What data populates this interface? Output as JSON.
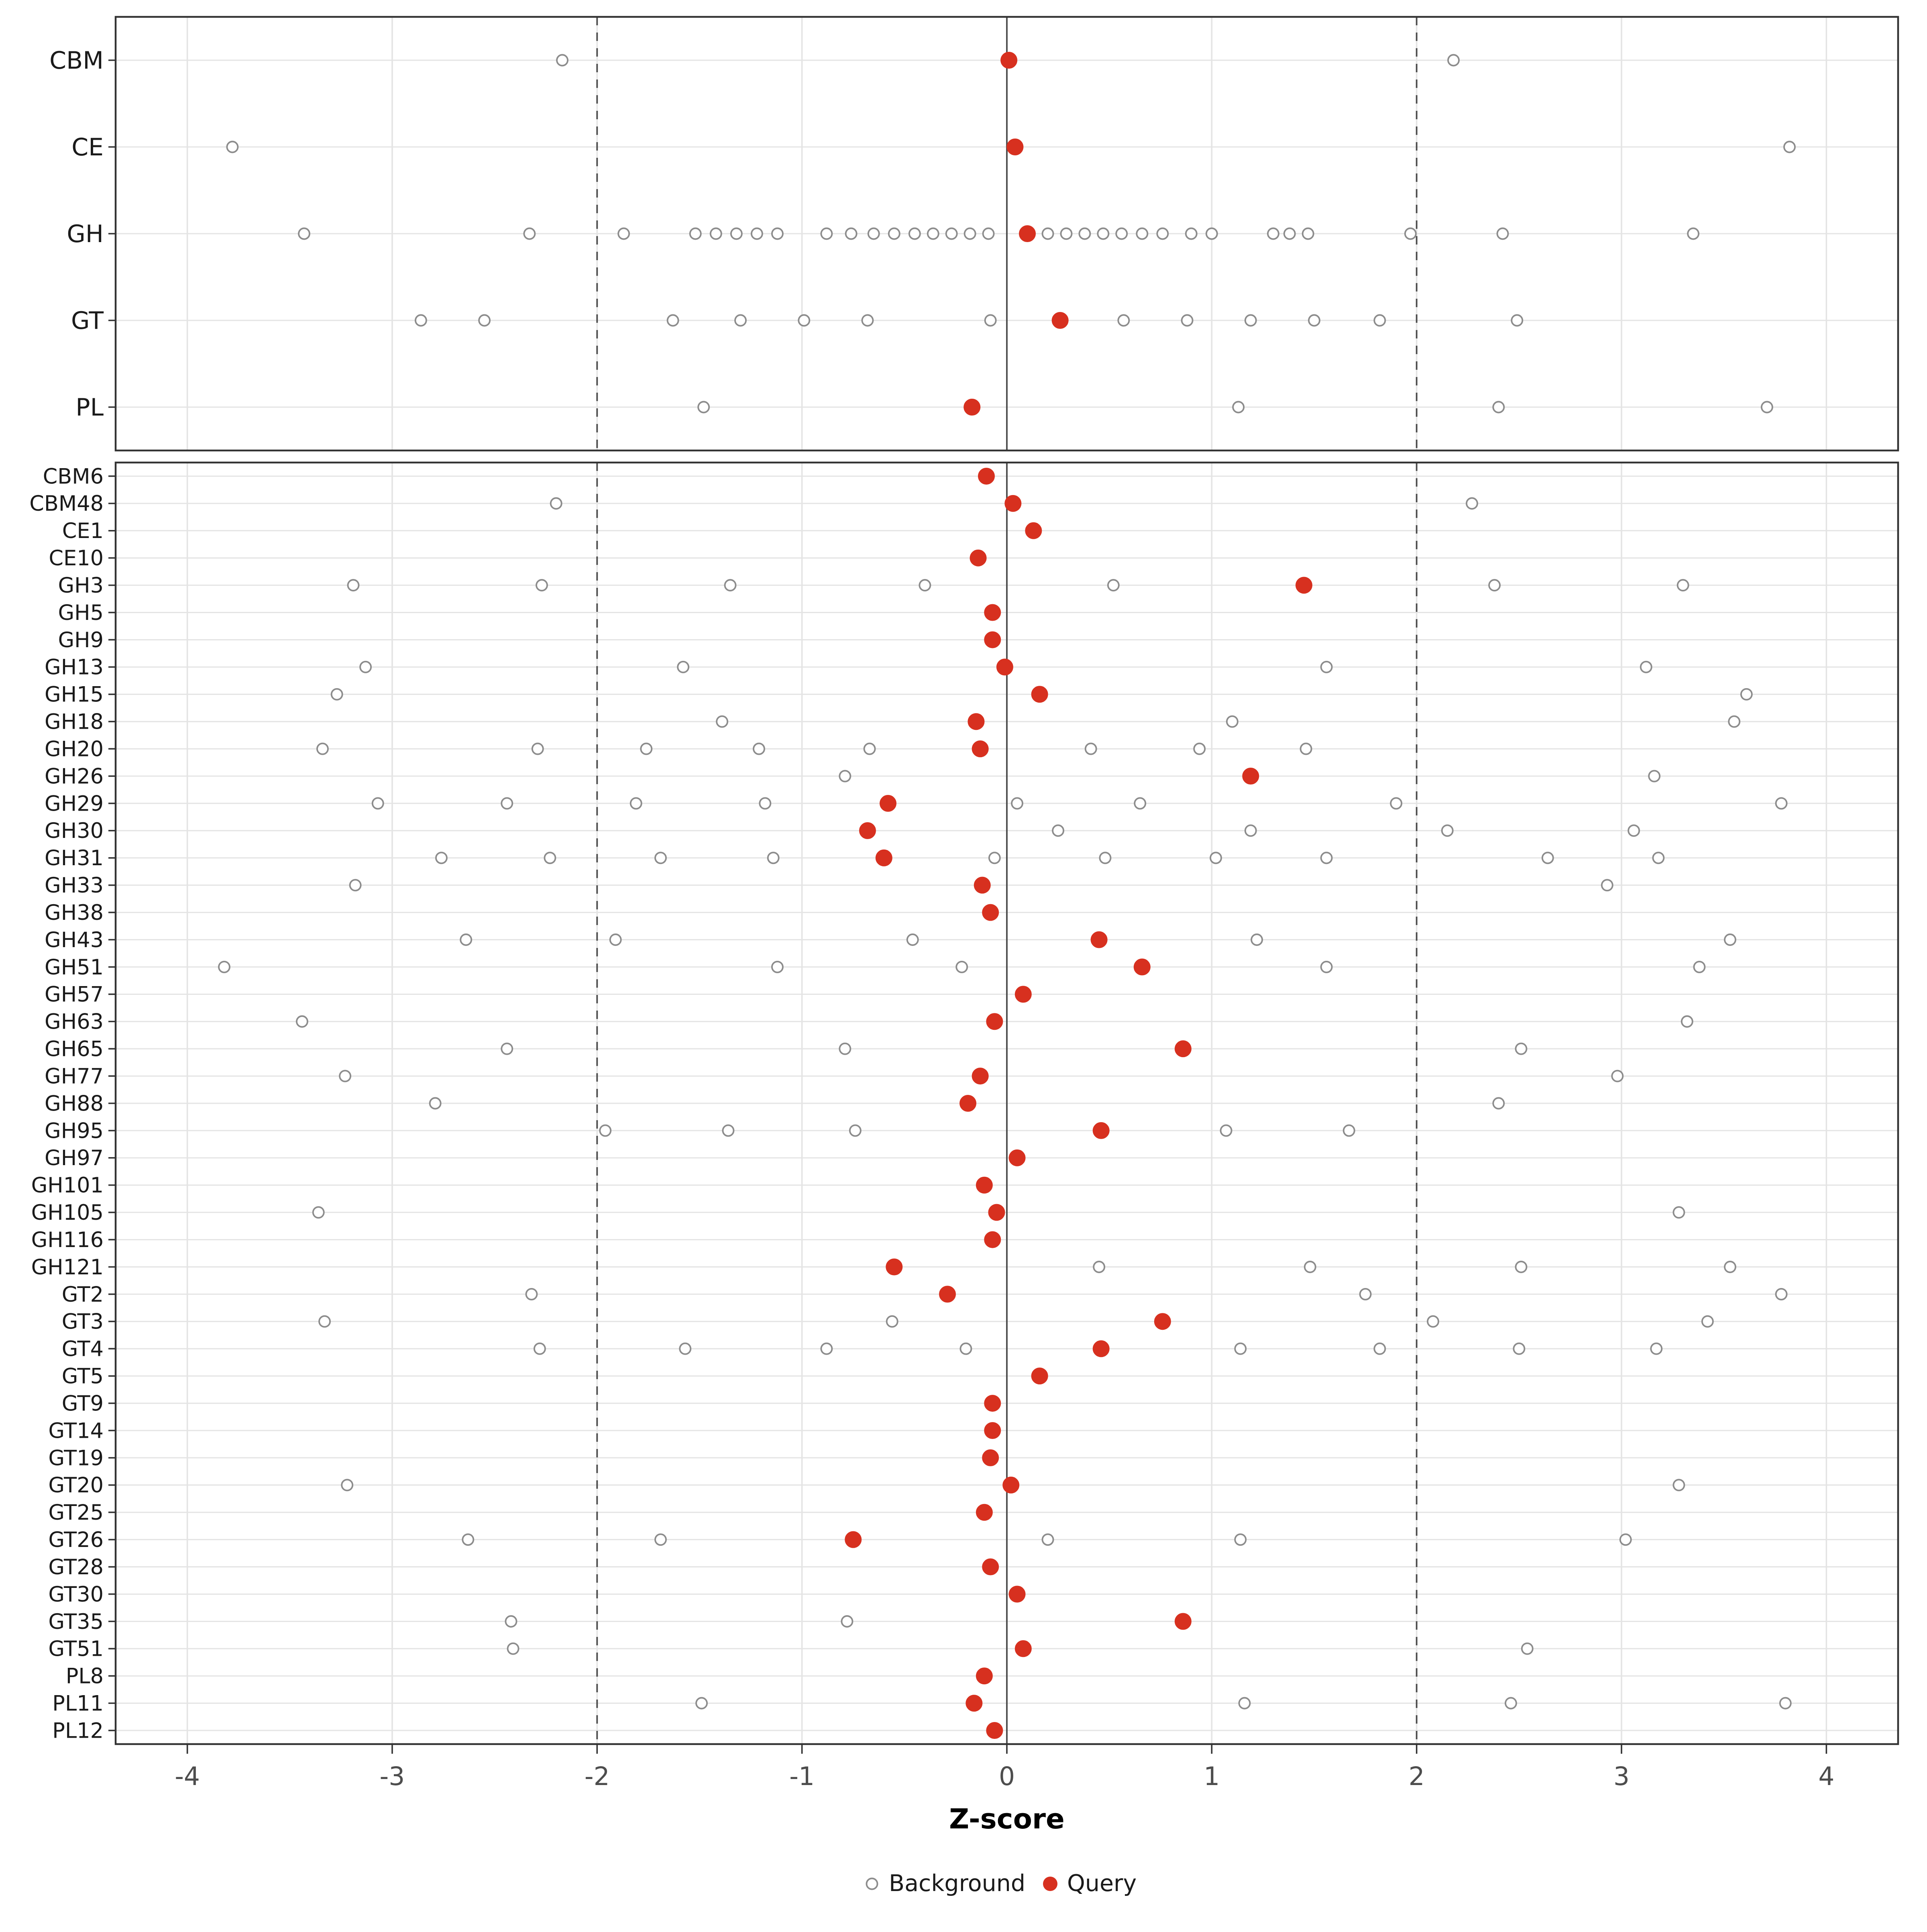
{
  "chart_data": {
    "type": "scatter",
    "title": "",
    "xlabel": "Z-score",
    "xlim": [
      -4.35,
      4.35
    ],
    "xticks": [
      -4,
      -3,
      -2,
      -1,
      0,
      1,
      2,
      3,
      4
    ],
    "xtick_labels": [
      "-4",
      "-3",
      "-2",
      "-1",
      "0",
      "1",
      "2",
      "3",
      "4"
    ],
    "reference_lines": {
      "solid": [
        0
      ],
      "dashed": [
        -2,
        2
      ]
    },
    "grid": true,
    "legend_position": "bottom",
    "legend": [
      {
        "label": "Background",
        "marker": "open-circle",
        "color": "#8c8c8c"
      },
      {
        "label": "Query",
        "marker": "filled-circle",
        "color": "#d7301f"
      }
    ],
    "colors": {
      "query": "#d7301f",
      "background_stroke": "#8c8c8c",
      "gridline": "#e4e4e4",
      "reference_line": "#4d4d4d",
      "panel_border": "#333333",
      "text": "#1a1a1a",
      "axis_text": "#4d4d4d"
    },
    "panels": [
      {
        "name": "family-class-summary",
        "rows": [
          {
            "label": "CBM",
            "query": 0.01,
            "background": [
              -2.17,
              2.18
            ]
          },
          {
            "label": "CE",
            "query": 0.04,
            "background": [
              -3.78,
              3.82
            ]
          },
          {
            "label": "GH",
            "query": 0.1,
            "background": [
              -3.43,
              -2.33,
              -1.87,
              -1.52,
              -1.42,
              -1.32,
              -1.22,
              -1.12,
              -0.88,
              -0.76,
              -0.65,
              -0.55,
              -0.45,
              -0.36,
              -0.27,
              -0.18,
              -0.09,
              0.2,
              0.29,
              0.38,
              0.47,
              0.56,
              0.66,
              0.76,
              0.9,
              1.0,
              1.3,
              1.38,
              1.47,
              1.97,
              2.42,
              3.35
            ]
          },
          {
            "label": "GT",
            "query": 0.26,
            "background": [
              -2.86,
              -2.55,
              -1.63,
              -1.3,
              -0.99,
              -0.68,
              -0.08,
              0.57,
              0.88,
              1.19,
              1.5,
              1.82,
              2.49
            ]
          },
          {
            "label": "PL",
            "query": -0.17,
            "background": [
              -1.48,
              1.13,
              2.4,
              3.71
            ]
          }
        ]
      },
      {
        "name": "family-detail",
        "rows": [
          {
            "label": "CBM6",
            "query": -0.1,
            "background": []
          },
          {
            "label": "CBM48",
            "query": 0.03,
            "background": [
              -2.2,
              2.27
            ]
          },
          {
            "label": "CE1",
            "query": 0.13,
            "background": []
          },
          {
            "label": "CE10",
            "query": -0.14,
            "background": []
          },
          {
            "label": "GH3",
            "query": 1.45,
            "background": [
              -3.19,
              -2.27,
              -1.35,
              -0.4,
              0.52,
              2.38,
              3.3
            ]
          },
          {
            "label": "GH5",
            "query": -0.07,
            "background": []
          },
          {
            "label": "GH9",
            "query": -0.07,
            "background": []
          },
          {
            "label": "GH13",
            "query": -0.01,
            "background": [
              -3.13,
              -1.58,
              1.56,
              3.12
            ]
          },
          {
            "label": "GH15",
            "query": 0.16,
            "background": [
              -3.27,
              3.61
            ]
          },
          {
            "label": "GH18",
            "query": -0.15,
            "background": [
              -1.39,
              1.1,
              3.55
            ]
          },
          {
            "label": "GH20",
            "query": -0.13,
            "background": [
              -3.34,
              -2.29,
              -1.76,
              -1.21,
              -0.67,
              0.41,
              0.94,
              1.46
            ]
          },
          {
            "label": "GH26",
            "query": 1.19,
            "background": [
              -0.79,
              3.16
            ]
          },
          {
            "label": "GH29",
            "query": -0.58,
            "background": [
              -3.07,
              -2.44,
              -1.81,
              -1.18,
              0.05,
              0.65,
              1.9,
              3.78
            ]
          },
          {
            "label": "GH30",
            "query": -0.68,
            "background": [
              0.25,
              1.19,
              2.15,
              3.06
            ]
          },
          {
            "label": "GH31",
            "query": -0.6,
            "background": [
              -2.76,
              -2.23,
              -1.69,
              -1.14,
              -0.06,
              0.48,
              1.02,
              1.56,
              2.64,
              3.18
            ]
          },
          {
            "label": "GH33",
            "query": -0.12,
            "background": [
              -3.18,
              2.93
            ]
          },
          {
            "label": "GH38",
            "query": -0.08,
            "background": []
          },
          {
            "label": "GH43",
            "query": 0.45,
            "background": [
              -2.64,
              -1.91,
              -0.46,
              1.22,
              3.53
            ]
          },
          {
            "label": "GH51",
            "query": 0.66,
            "background": [
              -3.82,
              -1.12,
              -0.22,
              1.56,
              3.38
            ]
          },
          {
            "label": "GH57",
            "query": 0.08,
            "background": []
          },
          {
            "label": "GH63",
            "query": -0.06,
            "background": [
              -3.44,
              3.32
            ]
          },
          {
            "label": "GH65",
            "query": 0.86,
            "background": [
              -2.44,
              -0.79,
              2.51
            ]
          },
          {
            "label": "GH77",
            "query": -0.13,
            "background": [
              -3.23,
              2.98
            ]
          },
          {
            "label": "GH88",
            "query": -0.19,
            "background": [
              -2.79,
              2.4
            ]
          },
          {
            "label": "GH95",
            "query": 0.46,
            "background": [
              -1.96,
              -1.36,
              -0.74,
              1.07,
              1.67
            ]
          },
          {
            "label": "GH97",
            "query": 0.05,
            "background": []
          },
          {
            "label": "GH101",
            "query": -0.11,
            "background": []
          },
          {
            "label": "GH105",
            "query": -0.05,
            "background": [
              -3.36,
              3.28
            ]
          },
          {
            "label": "GH116",
            "query": -0.07,
            "background": []
          },
          {
            "label": "GH121",
            "query": -0.55,
            "background": [
              0.45,
              1.48,
              2.51,
              3.53
            ]
          },
          {
            "label": "GT2",
            "query": -0.29,
            "background": [
              -2.32,
              1.75,
              3.78
            ]
          },
          {
            "label": "GT3",
            "query": 0.76,
            "background": [
              -3.33,
              -0.56,
              2.08,
              3.42
            ]
          },
          {
            "label": "GT4",
            "query": 0.46,
            "background": [
              -2.28,
              -1.57,
              -0.88,
              -0.2,
              1.14,
              1.82,
              2.5,
              3.17
            ]
          },
          {
            "label": "GT5",
            "query": 0.16,
            "background": []
          },
          {
            "label": "GT9",
            "query": -0.07,
            "background": []
          },
          {
            "label": "GT14",
            "query": -0.07,
            "background": []
          },
          {
            "label": "GT19",
            "query": -0.08,
            "background": []
          },
          {
            "label": "GT20",
            "query": 0.02,
            "background": [
              -3.22,
              3.28
            ]
          },
          {
            "label": "GT25",
            "query": -0.11,
            "background": []
          },
          {
            "label": "GT26",
            "query": -0.75,
            "background": [
              -2.63,
              -1.69,
              0.2,
              1.14,
              3.02
            ]
          },
          {
            "label": "GT28",
            "query": -0.08,
            "background": []
          },
          {
            "label": "GT30",
            "query": 0.05,
            "background": []
          },
          {
            "label": "GT35",
            "query": 0.86,
            "background": [
              -2.42,
              -0.78
            ]
          },
          {
            "label": "GT51",
            "query": 0.08,
            "background": [
              -2.41,
              2.54
            ]
          },
          {
            "label": "PL8",
            "query": -0.11,
            "background": []
          },
          {
            "label": "PL11",
            "query": -0.16,
            "background": [
              -1.49,
              1.16,
              2.46,
              3.8
            ]
          },
          {
            "label": "PL12",
            "query": -0.06,
            "background": []
          }
        ]
      }
    ]
  }
}
